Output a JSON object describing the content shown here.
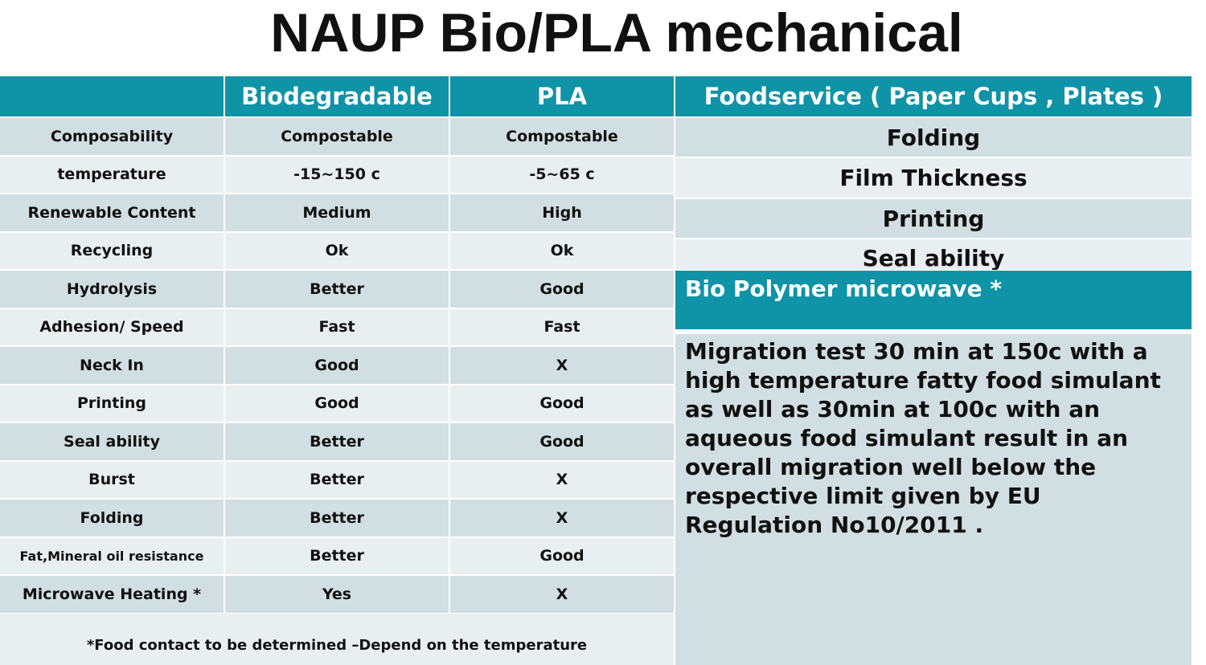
{
  "title": "NAUP Bio/PLA mechanical",
  "table": {
    "headers": [
      "",
      "Biodegradable",
      "PLA"
    ],
    "rows": [
      [
        "Composability",
        "Compostable",
        "Compostable"
      ],
      [
        "temperature",
        "-15~150 c",
        "-5~65 c"
      ],
      [
        "Renewable Content",
        "Medium",
        "High"
      ],
      [
        "Recycling",
        "Ok",
        "Ok"
      ],
      [
        "Hydrolysis",
        "Better",
        "Good"
      ],
      [
        "Adhesion/ Speed",
        "Fast",
        "Fast"
      ],
      [
        "Neck In",
        "Good",
        "X"
      ],
      [
        "Printing",
        "Good",
        "Good"
      ],
      [
        "Seal ability",
        "Better",
        "Good"
      ],
      [
        "Burst",
        "Better",
        "X"
      ],
      [
        "Folding",
        "Better",
        "X"
      ],
      [
        "Fat,Mineral oil resistance",
        "Better",
        "Good"
      ],
      [
        "Microwave Heating *",
        "Yes",
        "X"
      ]
    ],
    "footnote": "*Food contact to be determined –Depend on the temperature"
  },
  "right": {
    "header": "Foodservice ( Paper Cups , Plates )",
    "items": [
      "Folding",
      "Film Thickness",
      "Printing",
      "Seal ability"
    ],
    "section_title": "Bio Polymer microwave *",
    "body": "Migration test 30 min at 150c with a high temperature fatty food simulant as well as 30min at 100c with an aqueous food simulant result in an overall migration well below the respective limit given by EU Regulation No10/2011 ."
  },
  "colors": {
    "header": "#0f93a7",
    "row_dark": "#d1dfe3",
    "row_light": "#e9eff1"
  }
}
